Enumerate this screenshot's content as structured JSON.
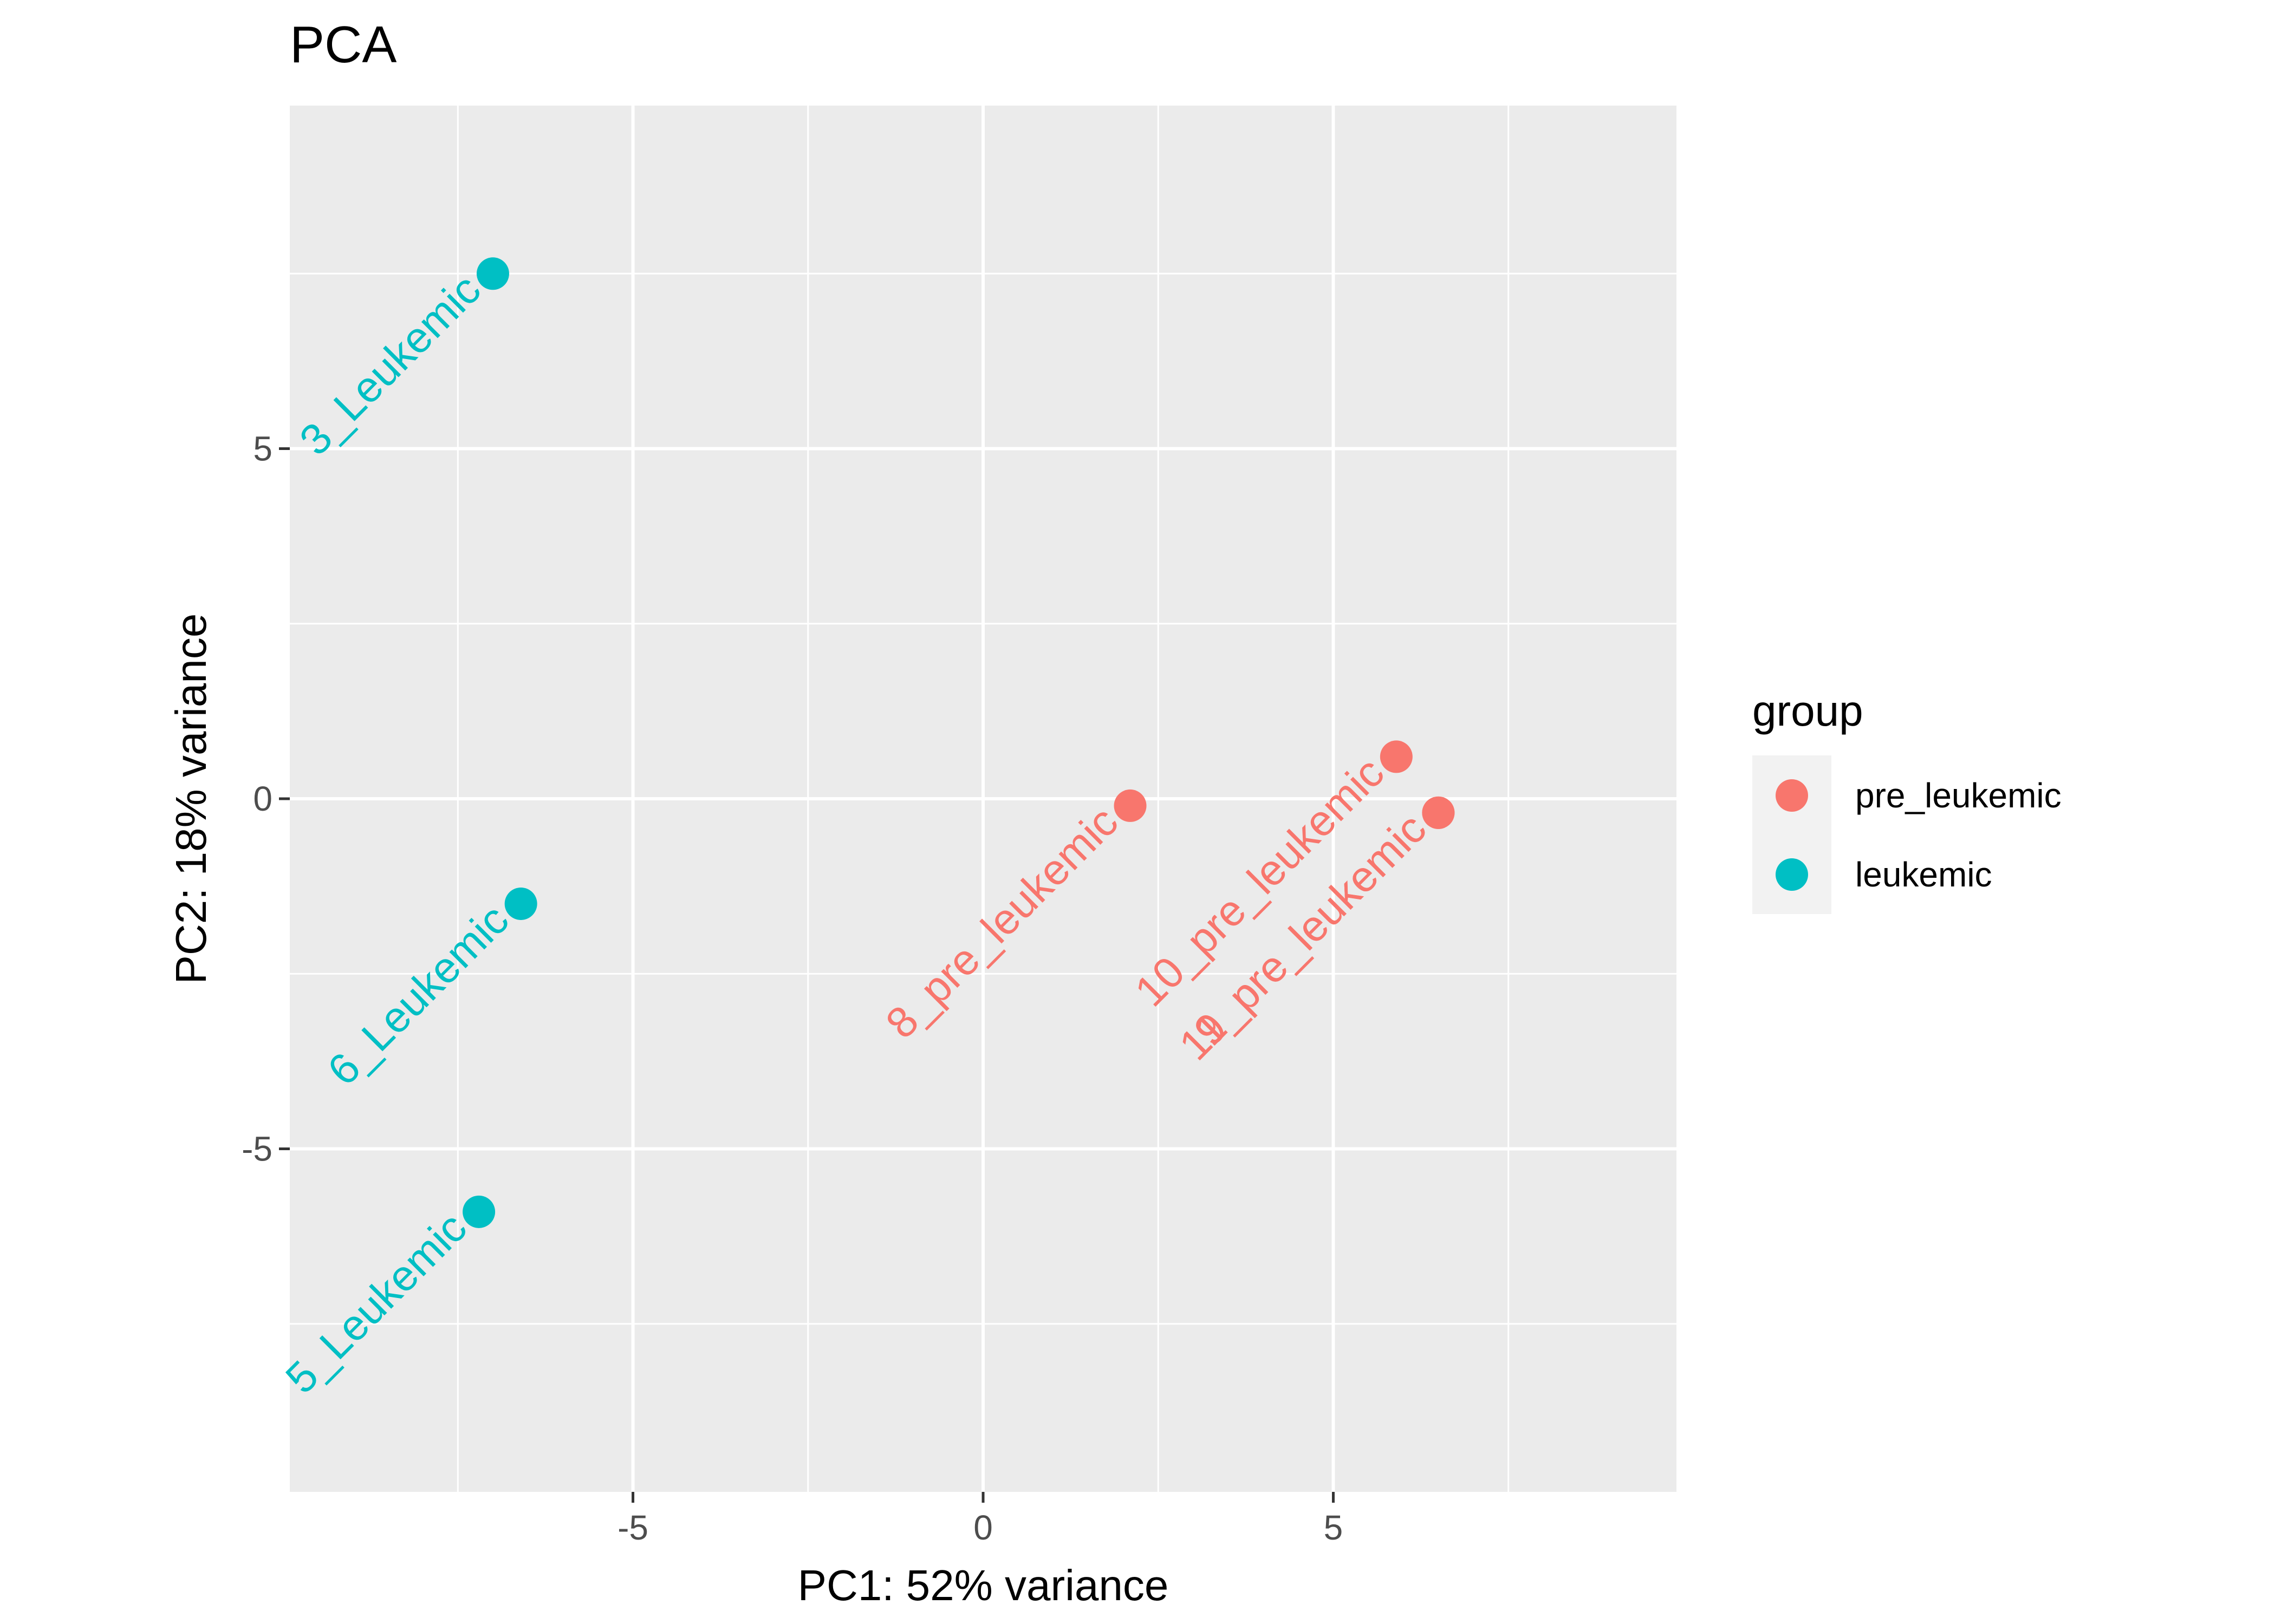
{
  "chart_data": {
    "type": "scatter",
    "title": "PCA",
    "xlabel": "PC1: 52% variance",
    "ylabel": "PC2: 18% variance",
    "xlim": [
      -9.9,
      9.9
    ],
    "ylim": [
      -9.9,
      9.9
    ],
    "x_ticks": [
      -5,
      0,
      5
    ],
    "y_ticks": [
      5,
      0,
      -5
    ],
    "x_tick_labels": [
      "-5",
      "0",
      "5"
    ],
    "y_tick_labels": [
      "5",
      "0",
      "-5"
    ],
    "grid": true,
    "legend": {
      "title": "group",
      "position": "right",
      "entries": [
        {
          "label": "pre_leukemic",
          "color": "#F8766D"
        },
        {
          "label": "leukemic",
          "color": "#00BFC4"
        }
      ]
    },
    "series": [
      {
        "name": "pre_leukemic",
        "color": "#F8766D",
        "points": [
          {
            "x": 2.1,
            "y": -0.1,
            "label": "8_pre_leukemic"
          },
          {
            "x": 5.9,
            "y": 0.6,
            "label": "10_pre_leukemic"
          },
          {
            "x": 6.5,
            "y": -0.2,
            "label": "9_pre_leukemic"
          },
          {
            "x": 6.5,
            "y": -0.2,
            "label": "11_pre_leukemic"
          }
        ]
      },
      {
        "name": "leukemic",
        "color": "#00BFC4",
        "points": [
          {
            "x": -7.0,
            "y": 7.5,
            "label": "3_Leukemic"
          },
          {
            "x": -6.6,
            "y": -1.5,
            "label": "6_Leukemic"
          },
          {
            "x": -7.2,
            "y": -5.9,
            "label": "5_Leukemic"
          }
        ]
      }
    ]
  }
}
